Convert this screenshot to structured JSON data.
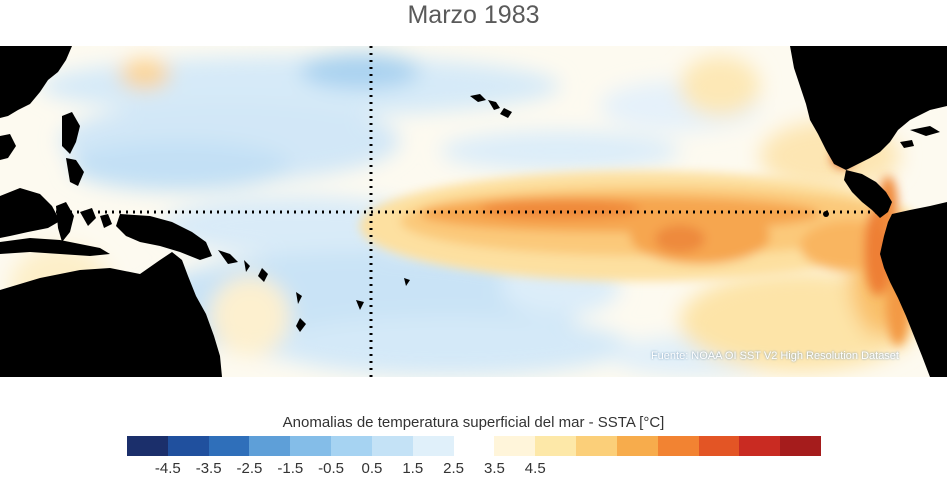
{
  "title": "Marzo 1983",
  "source": "Fuente: NOAA OI SST V2 High Resolution Dataset",
  "colorbar": {
    "title": "Anomalias de temperatura superficial del mar - SSTA  [°C]",
    "colors": [
      "#1b2f6b",
      "#20509e",
      "#2f6fba",
      "#5e9fd8",
      "#84bde8",
      "#a6d3f2",
      "#c4e2f6",
      "#e0f0fa",
      "#ffffff",
      "#fff5da",
      "#fde8a8",
      "#fbcf79",
      "#f7ac4c",
      "#f28332",
      "#e35525",
      "#c92b22",
      "#a51c1c"
    ],
    "tick_labels": [
      "-4.5",
      "-3.5",
      "-2.5",
      "-1.5",
      "-0.5",
      "0.5",
      "1.5",
      "2.5",
      "3.5",
      "4.5"
    ],
    "tick_values": [
      -4.5,
      -3.5,
      -2.5,
      -1.5,
      -0.5,
      0.5,
      1.5,
      2.5,
      3.5,
      4.5
    ],
    "range": [
      -4.5,
      4.5
    ]
  },
  "map": {
    "land_color": "#000000",
    "reference_lines": "dotted equator and dateline"
  }
}
